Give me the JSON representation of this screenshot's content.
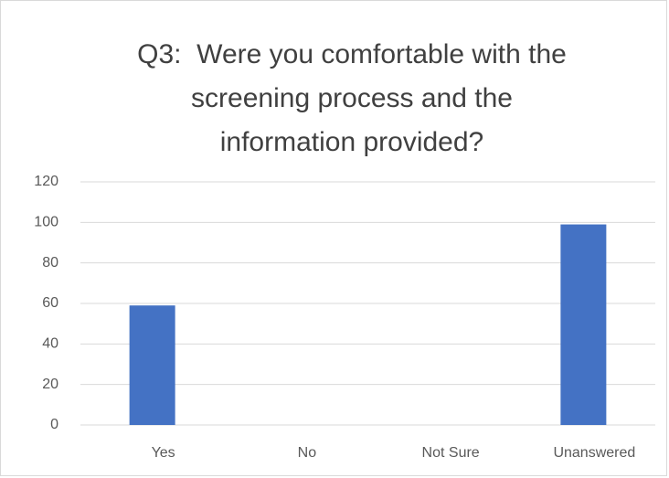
{
  "chart_data": {
    "type": "bar",
    "title": "Q3:  Were you comfortable with the\nscreening process and the\ninformation provided?",
    "categories": [
      "Yes",
      "No",
      "Not Sure",
      "Unanswered"
    ],
    "values": [
      59,
      0,
      0,
      99
    ],
    "color": "#4472c4",
    "ylim": [
      0,
      120
    ],
    "yticks": [
      0,
      20,
      40,
      60,
      80,
      100,
      120
    ],
    "grid": true
  }
}
